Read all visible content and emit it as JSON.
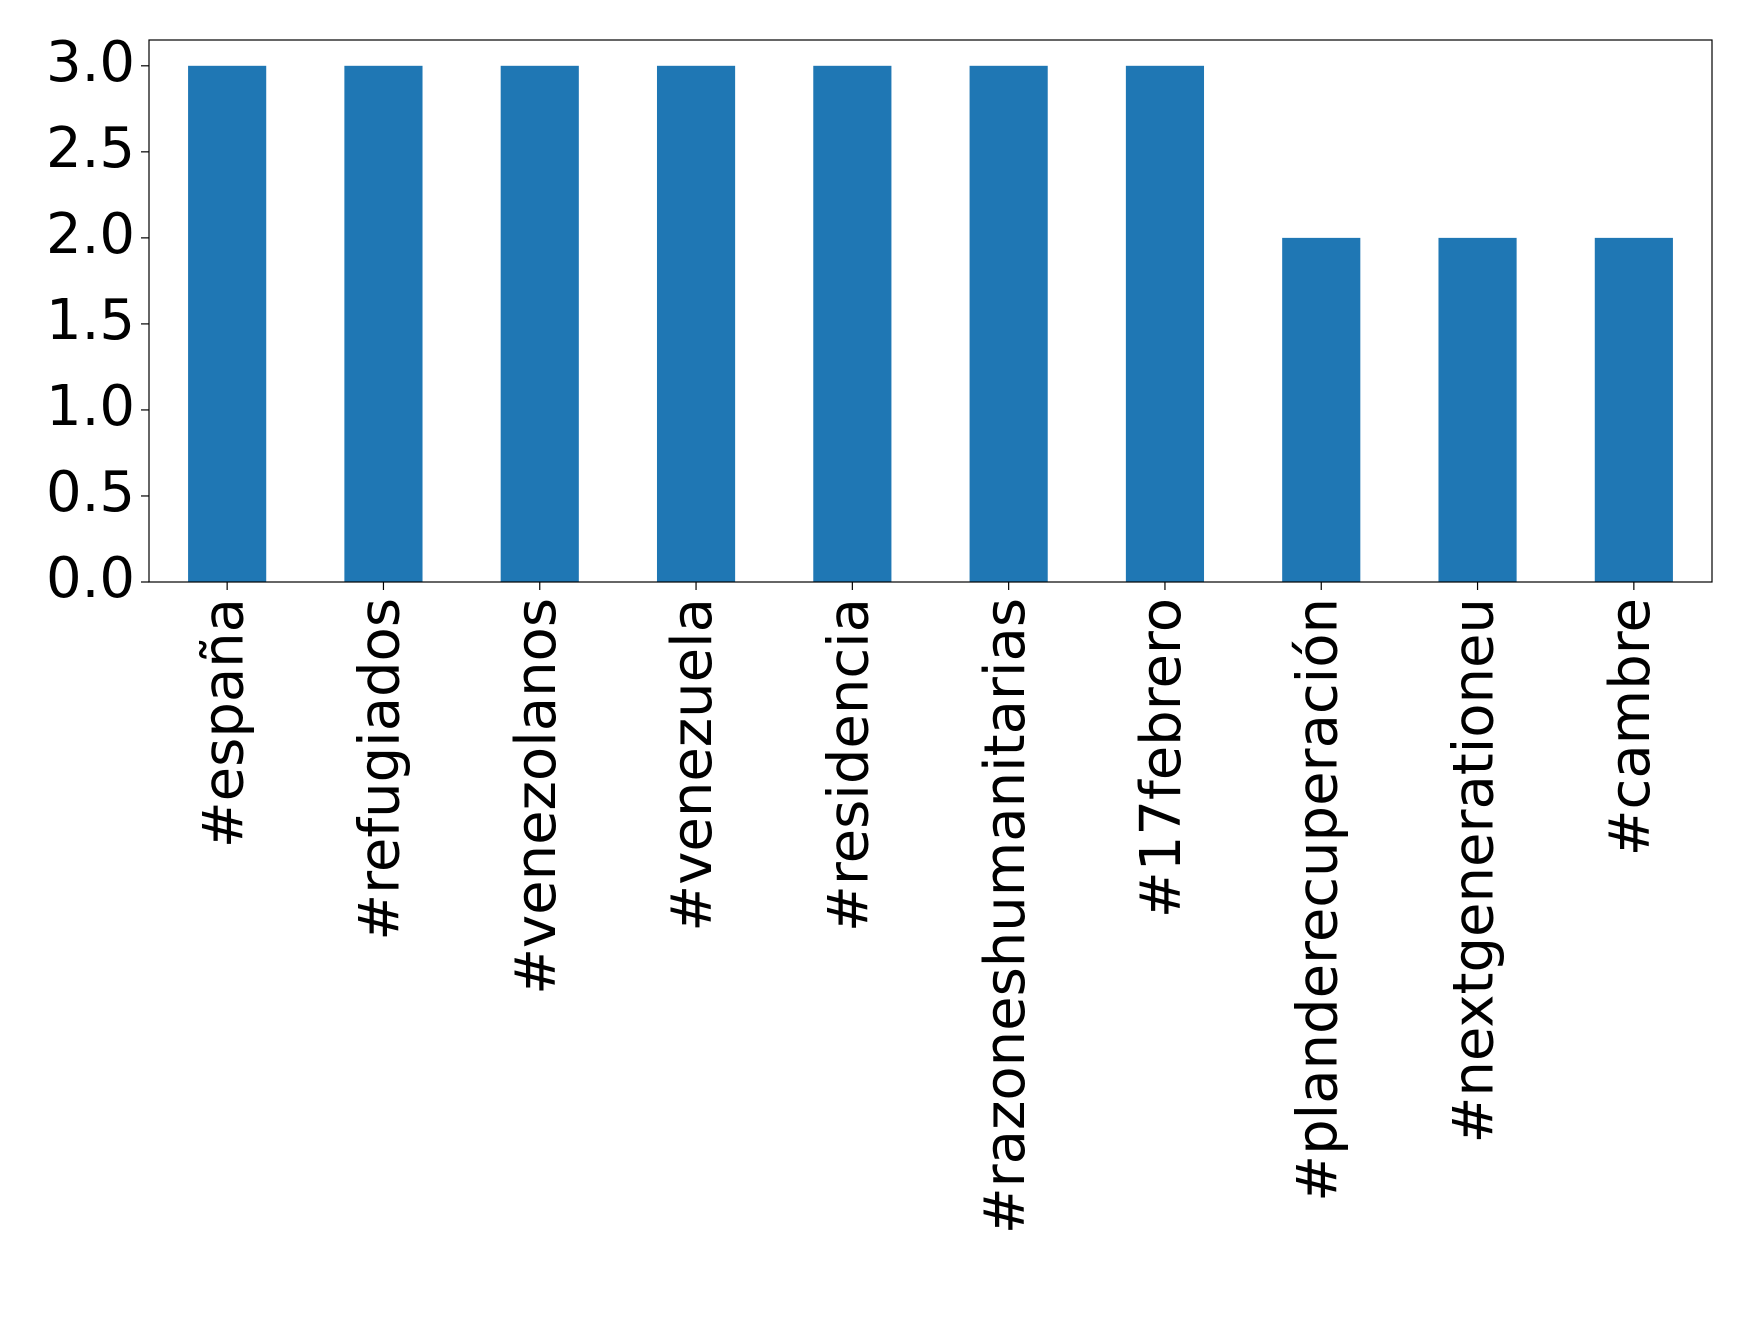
{
  "chart_data": {
    "type": "bar",
    "categories": [
      "#españa",
      "#refugiados",
      "#venezolanos",
      "#venezuela",
      "#residencia",
      "#razoneshumanitarias",
      "#17febrero",
      "#planderecuperación",
      "#nextgenerationeu",
      "#cambre"
    ],
    "values": [
      3,
      3,
      3,
      3,
      3,
      3,
      3,
      2,
      2,
      2
    ],
    "color": "#1f77b4",
    "ylim": [
      0,
      3.15
    ],
    "yticks": [
      {
        "value": 0,
        "label": "0.0"
      },
      {
        "value": 0.5,
        "label": "0.5"
      },
      {
        "value": 1,
        "label": "1.0"
      },
      {
        "value": 1.5,
        "label": "1.5"
      },
      {
        "value": 2,
        "label": "2.0"
      },
      {
        "value": 2.5,
        "label": "2.5"
      },
      {
        "value": 3,
        "label": "3.0"
      }
    ],
    "grid": false
  }
}
